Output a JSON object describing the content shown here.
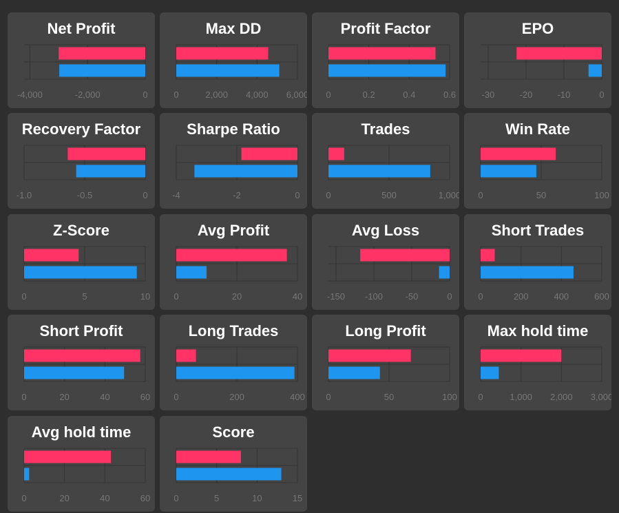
{
  "colors": {
    "series_a": "#ff3366",
    "series_b": "#1e96f0",
    "grid": "#333333",
    "tick_text": "#777777",
    "card_bg": "#444444",
    "page_bg": "#2e2e2e"
  },
  "chart_data": [
    {
      "type": "bar",
      "orientation": "horizontal",
      "title": "Net Profit",
      "xlim": [
        -4200,
        0
      ],
      "ticks": [
        -4000,
        -2000,
        0
      ],
      "tick_labels": [
        "-4,000",
        "-2,000",
        "0"
      ],
      "values": [
        -3000,
        -2980
      ]
    },
    {
      "type": "bar",
      "orientation": "horizontal",
      "title": "Max DD",
      "xlim": [
        0,
        6000
      ],
      "ticks": [
        0,
        2000,
        4000,
        6000
      ],
      "tick_labels": [
        "0",
        "2,000",
        "4,000",
        "6,000"
      ],
      "values": [
        4550,
        5100
      ]
    },
    {
      "type": "bar",
      "orientation": "horizontal",
      "title": "Profit Factor",
      "xlim": [
        0,
        0.6
      ],
      "ticks": [
        0,
        0.2,
        0.4,
        0.6
      ],
      "tick_labels": [
        "0",
        "0.2",
        "0.4",
        "0.6"
      ],
      "values": [
        0.53,
        0.58
      ]
    },
    {
      "type": "bar",
      "orientation": "horizontal",
      "title": "EPO",
      "xlim": [
        -32,
        0
      ],
      "ticks": [
        -30,
        -20,
        -10,
        0
      ],
      "tick_labels": [
        "-30",
        "-20",
        "-10",
        "0"
      ],
      "values": [
        -22.5,
        -3.5
      ]
    },
    {
      "type": "bar",
      "orientation": "horizontal",
      "title": "Recovery Factor",
      "xlim": [
        -1.0,
        0
      ],
      "ticks": [
        -1.0,
        -0.5,
        0
      ],
      "tick_labels": [
        "-1.0",
        "-0.5",
        "0"
      ],
      "values": [
        -0.64,
        -0.57
      ]
    },
    {
      "type": "bar",
      "orientation": "horizontal",
      "title": "Sharpe Ratio",
      "xlim": [
        -4,
        0
      ],
      "ticks": [
        -4,
        -2,
        0
      ],
      "tick_labels": [
        "-4",
        "-2",
        "0"
      ],
      "values": [
        -1.85,
        -3.4
      ]
    },
    {
      "type": "bar",
      "orientation": "horizontal",
      "title": "Trades",
      "xlim": [
        0,
        1000
      ],
      "ticks": [
        0,
        500,
        1000
      ],
      "tick_labels": [
        "0",
        "500",
        "1,000"
      ],
      "values": [
        130,
        840
      ]
    },
    {
      "type": "bar",
      "orientation": "horizontal",
      "title": "Win Rate",
      "xlim": [
        0,
        100
      ],
      "ticks": [
        0,
        50,
        100
      ],
      "tick_labels": [
        "0",
        "50",
        "100"
      ],
      "values": [
        62,
        46
      ]
    },
    {
      "type": "bar",
      "orientation": "horizontal",
      "title": "Z-Score",
      "xlim": [
        0,
        10
      ],
      "ticks": [
        0,
        5,
        10
      ],
      "tick_labels": [
        "0",
        "5",
        "10"
      ],
      "values": [
        4.5,
        9.3
      ]
    },
    {
      "type": "bar",
      "orientation": "horizontal",
      "title": "Avg Profit",
      "xlim": [
        0,
        40
      ],
      "ticks": [
        0,
        20,
        40
      ],
      "tick_labels": [
        "0",
        "20",
        "40"
      ],
      "values": [
        36.5,
        10
      ]
    },
    {
      "type": "bar",
      "orientation": "horizontal",
      "title": "Avg Loss",
      "xlim": [
        -160,
        0
      ],
      "ticks": [
        -150,
        -100,
        -50,
        0
      ],
      "tick_labels": [
        "-150",
        "-100",
        "-50",
        "0"
      ],
      "values": [
        -118,
        -14
      ]
    },
    {
      "type": "bar",
      "orientation": "horizontal",
      "title": "Short Trades",
      "xlim": [
        0,
        600
      ],
      "ticks": [
        0,
        200,
        400,
        600
      ],
      "tick_labels": [
        "0",
        "200",
        "400",
        "600"
      ],
      "values": [
        70,
        460
      ]
    },
    {
      "type": "bar",
      "orientation": "horizontal",
      "title": "Short Profit",
      "xlim": [
        0,
        60
      ],
      "ticks": [
        0,
        20,
        40,
        60
      ],
      "tick_labels": [
        "0",
        "20",
        "40",
        "60"
      ],
      "values": [
        57.5,
        49.5
      ]
    },
    {
      "type": "bar",
      "orientation": "horizontal",
      "title": "Long Trades",
      "xlim": [
        0,
        400
      ],
      "ticks": [
        0,
        200,
        400
      ],
      "tick_labels": [
        "0",
        "200",
        "400"
      ],
      "values": [
        65,
        390
      ]
    },
    {
      "type": "bar",
      "orientation": "horizontal",
      "title": "Long Profit",
      "xlim": [
        0,
        100
      ],
      "ticks": [
        0,
        50,
        100
      ],
      "tick_labels": [
        "0",
        "50",
        "100"
      ],
      "values": [
        68,
        42.5
      ]
    },
    {
      "type": "bar",
      "orientation": "horizontal",
      "title": "Max hold time",
      "xlim": [
        0,
        3000
      ],
      "ticks": [
        0,
        1000,
        2000,
        3000
      ],
      "tick_labels": [
        "0",
        "1,000",
        "2,000",
        "3,000"
      ],
      "values": [
        2000,
        450
      ]
    },
    {
      "type": "bar",
      "orientation": "horizontal",
      "title": "Avg hold time",
      "xlim": [
        0,
        60
      ],
      "ticks": [
        0,
        20,
        40,
        60
      ],
      "tick_labels": [
        "0",
        "20",
        "40",
        "60"
      ],
      "values": [
        43,
        2.5
      ]
    },
    {
      "type": "bar",
      "orientation": "horizontal",
      "title": "Score",
      "xlim": [
        0,
        15
      ],
      "ticks": [
        0,
        5,
        10,
        15
      ],
      "tick_labels": [
        "0",
        "5",
        "10",
        "15"
      ],
      "values": [
        8,
        13
      ]
    }
  ]
}
